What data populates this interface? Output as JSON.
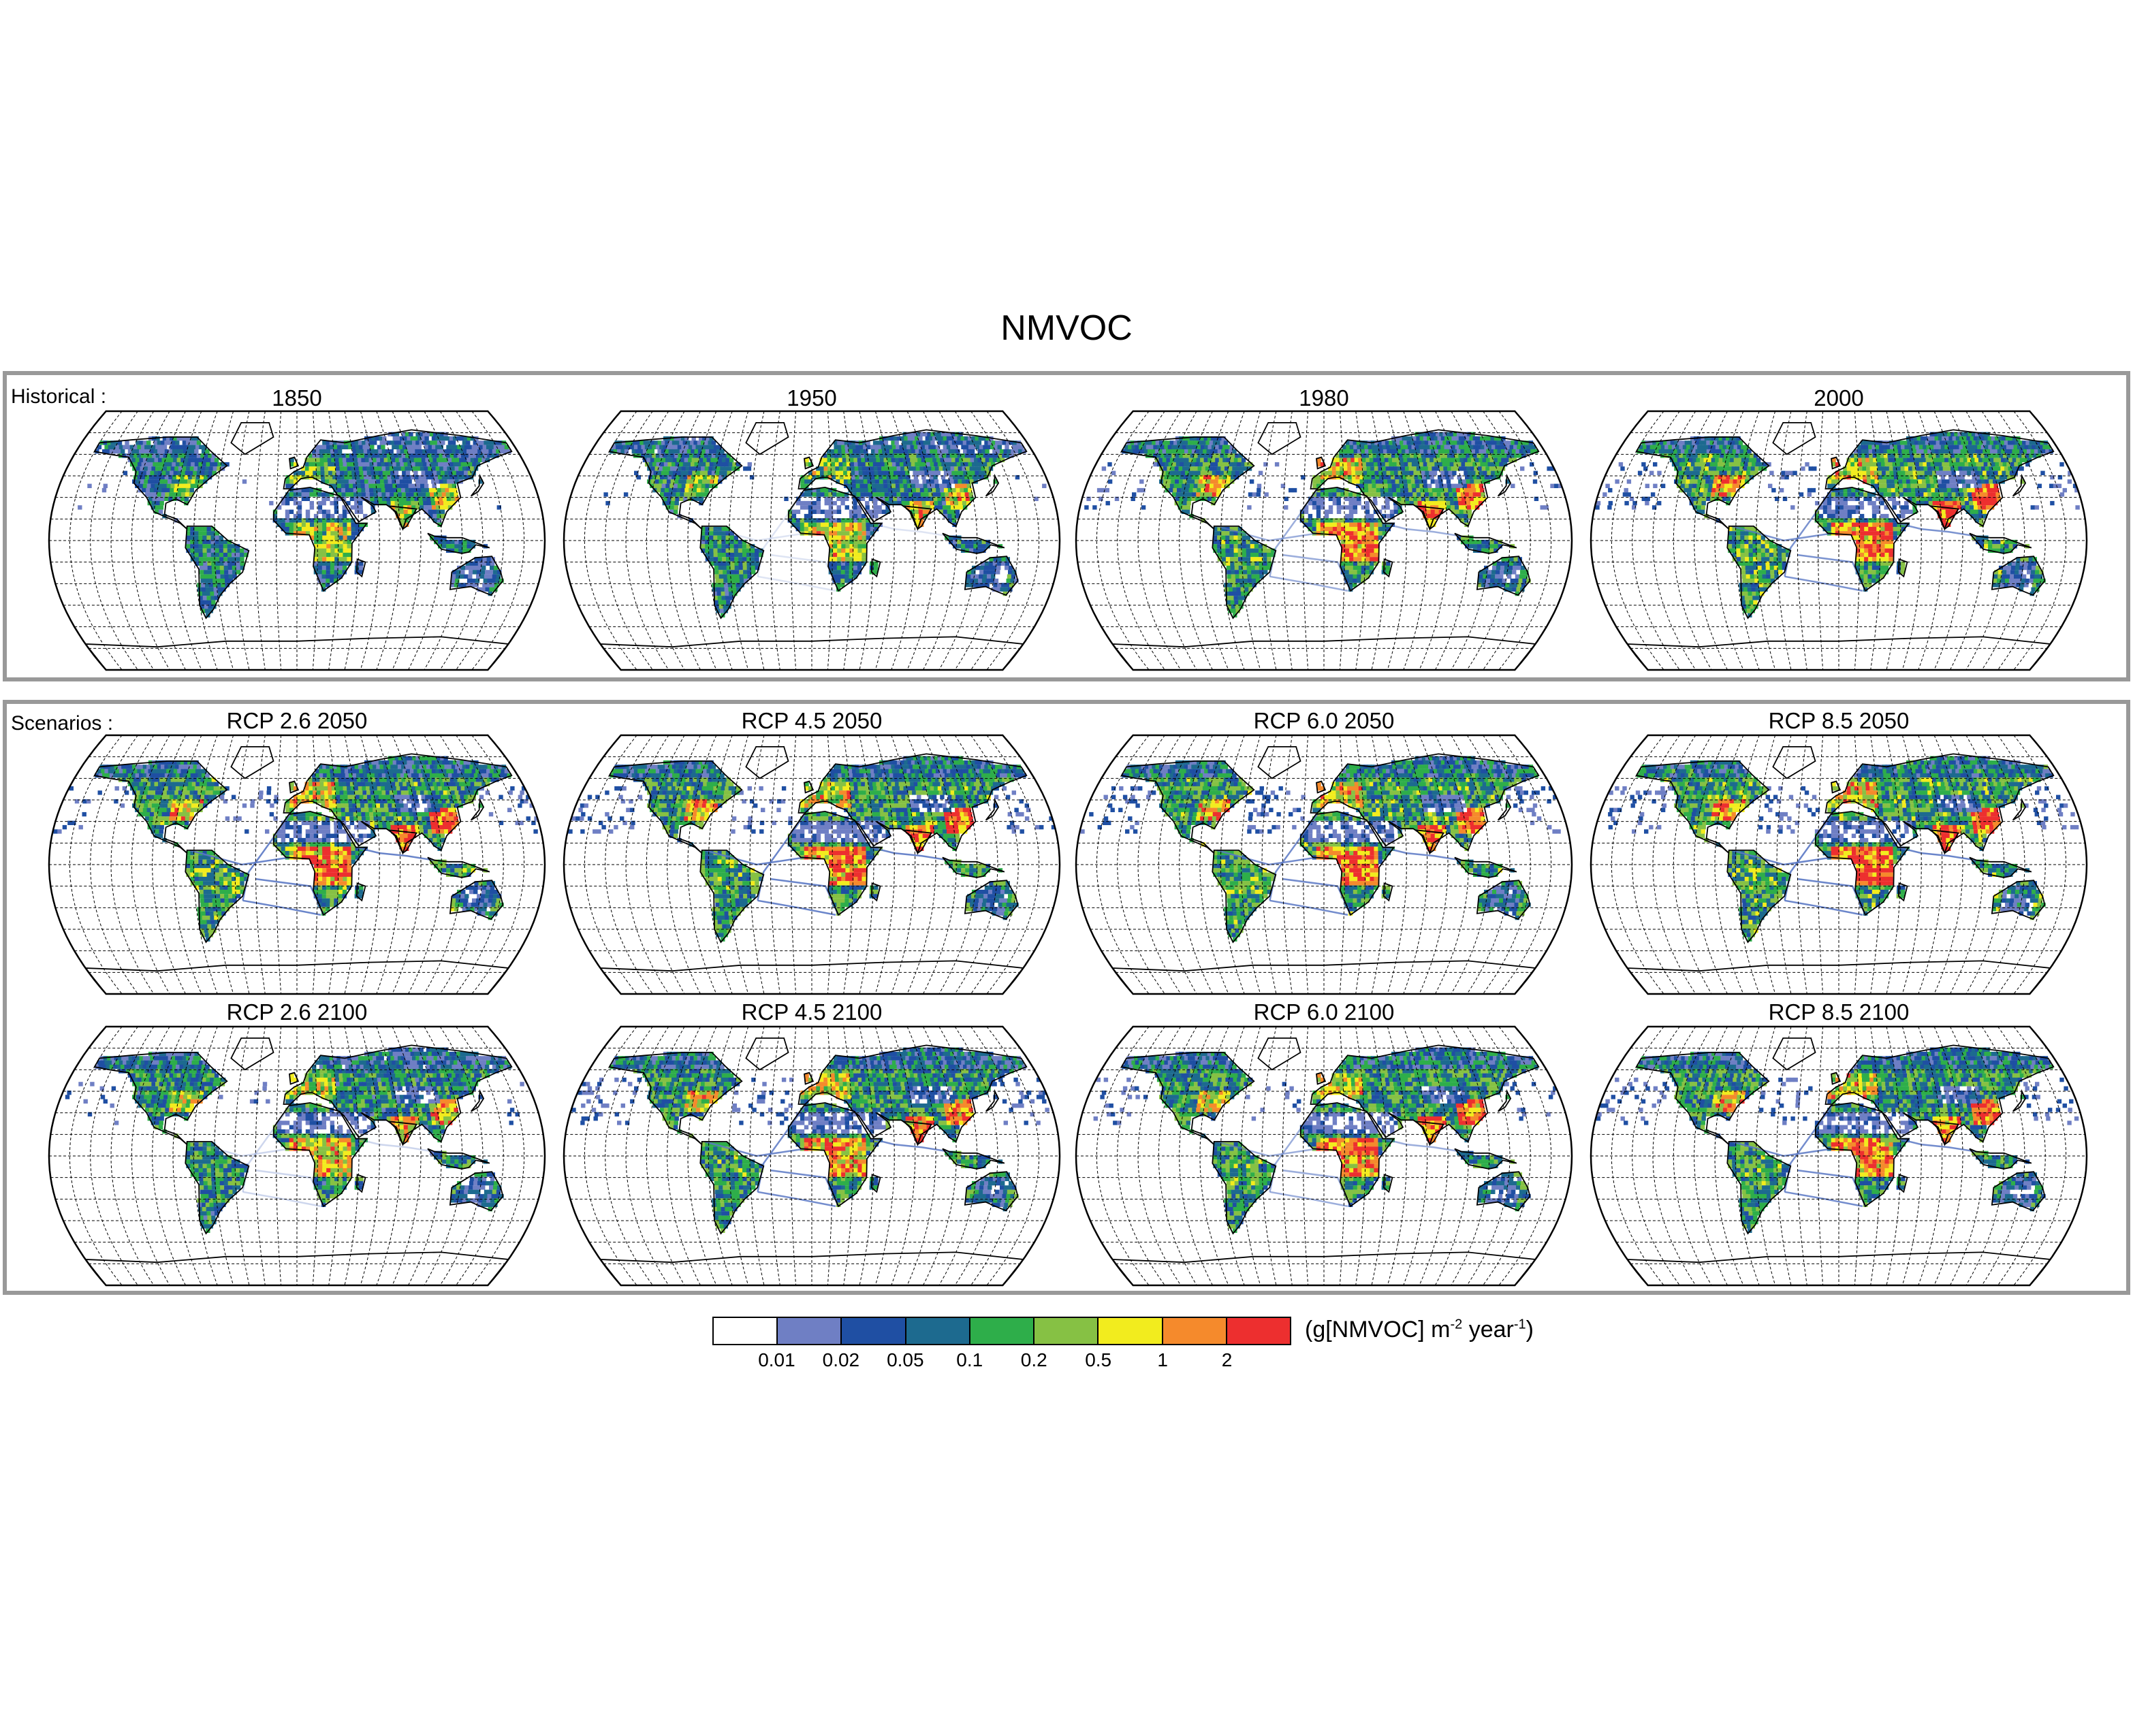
{
  "title": "NMVOC",
  "panels": {
    "historical_label": "Historical :",
    "scenarios_label": "Scenarios :"
  },
  "maps": [
    {
      "title": "1850",
      "intensity": 0.25,
      "shipping": 0.05
    },
    {
      "title": "1950",
      "intensity": 0.4,
      "shipping": 0.2
    },
    {
      "title": "1980",
      "intensity": 0.75,
      "shipping": 0.6
    },
    {
      "title": "2000",
      "intensity": 0.85,
      "shipping": 0.8
    },
    {
      "title": "RCP 2.6 2050",
      "intensity": 0.8,
      "shipping": 0.9
    },
    {
      "title": "RCP 4.5 2050",
      "intensity": 0.8,
      "shipping": 0.9
    },
    {
      "title": "RCP 6.0 2050",
      "intensity": 0.85,
      "shipping": 0.85
    },
    {
      "title": "RCP 8.5 2050",
      "intensity": 0.9,
      "shipping": 0.9
    },
    {
      "title": "RCP 2.6 2100",
      "intensity": 0.55,
      "shipping": 0.3
    },
    {
      "title": "RCP 4.5 2100",
      "intensity": 0.7,
      "shipping": 0.85
    },
    {
      "title": "RCP 6.0 2100",
      "intensity": 0.75,
      "shipping": 0.6
    },
    {
      "title": "RCP 8.5 2100",
      "intensity": 0.75,
      "shipping": 0.85
    }
  ],
  "legend": {
    "colors": [
      "#ffffff",
      "#6f7fc4",
      "#1f4fa3",
      "#1d6a8f",
      "#2eae4a",
      "#86c144",
      "#f2ec1e",
      "#f58a2c",
      "#ed2f2f"
    ],
    "ticks": [
      "0.01",
      "0.02",
      "0.05",
      "0.1",
      "0.2",
      "0.5",
      "1",
      "2"
    ],
    "unit_main": "(g[NMVOC] m",
    "unit_sup1": "-2",
    "unit_mid": " year",
    "unit_sup2": "-1",
    "unit_end": ")"
  }
}
